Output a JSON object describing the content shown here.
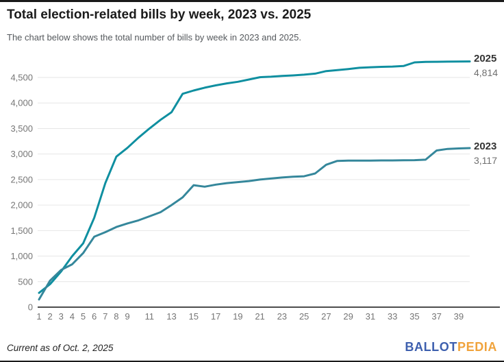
{
  "header": {
    "title": "Total election-related bills by week, 2023 vs. 2025",
    "subtitle": "The chart below shows the total number of bills by week in 2023 and 2025."
  },
  "chart_data": {
    "type": "line",
    "xlabel": "",
    "ylabel": "",
    "ylim": [
      0,
      4814
    ],
    "grid": true,
    "legend_position": "end-of-line",
    "x_tick_labels": [
      "1",
      "2",
      "3",
      "4",
      "5",
      "6",
      "7",
      "8",
      "9",
      "11",
      "13",
      "15",
      "17",
      "19",
      "21",
      "23",
      "25",
      "27",
      "29",
      "31",
      "33",
      "35",
      "37",
      "39"
    ],
    "x_tick_weeks": [
      1,
      2,
      3,
      4,
      5,
      6,
      7,
      8,
      9,
      11,
      13,
      15,
      17,
      19,
      21,
      23,
      25,
      27,
      29,
      31,
      33,
      35,
      37,
      39
    ],
    "y_tick_labels": [
      "0",
      "500",
      "1,000",
      "1,500",
      "2,000",
      "2,500",
      "3,000",
      "3,500",
      "4,000",
      "4,500"
    ],
    "y_tick_values": [
      0,
      500,
      1000,
      1500,
      2000,
      2500,
      3000,
      3500,
      4000,
      4500
    ],
    "weeks": [
      1,
      2,
      3,
      4,
      5,
      6,
      7,
      8,
      9,
      10,
      11,
      12,
      13,
      14,
      15,
      16,
      17,
      18,
      19,
      20,
      21,
      22,
      23,
      24,
      25,
      26,
      27,
      28,
      29,
      30,
      31,
      32,
      33,
      34,
      35,
      36,
      37,
      38,
      39,
      40
    ],
    "series": [
      {
        "name": "2025",
        "final_label": "4,814",
        "final_value": 4814,
        "color": "#0f8fa0",
        "values": [
          280,
          450,
          700,
          1000,
          1250,
          1750,
          2430,
          2950,
          3120,
          3320,
          3500,
          3670,
          3820,
          4180,
          4245,
          4300,
          4345,
          4385,
          4415,
          4460,
          4505,
          4515,
          4530,
          4540,
          4555,
          4575,
          4625,
          4645,
          4665,
          4690,
          4700,
          4708,
          4714,
          4725,
          4795,
          4805,
          4808,
          4810,
          4812,
          4814
        ]
      },
      {
        "name": "2023",
        "final_label": "3,117",
        "final_value": 3117,
        "color": "#35879b",
        "values": [
          150,
          520,
          730,
          840,
          1060,
          1380,
          1470,
          1570,
          1640,
          1700,
          1780,
          1860,
          2000,
          2150,
          2390,
          2360,
          2400,
          2430,
          2450,
          2470,
          2500,
          2520,
          2540,
          2555,
          2565,
          2620,
          2790,
          2865,
          2870,
          2870,
          2872,
          2874,
          2875,
          2878,
          2880,
          2890,
          3070,
          3100,
          3110,
          3117
        ]
      }
    ],
    "colors": {
      "gridline": "#e6e6e6",
      "axis_line": "#333333",
      "tick_text": "#757575"
    }
  },
  "footer": {
    "note": "Current as of Oct. 2, 2025",
    "logo": {
      "part1": "BALLOT",
      "part2": "PEDIA",
      "part1_color": "#3d5fae",
      "part2_color": "#f0a33c"
    }
  }
}
